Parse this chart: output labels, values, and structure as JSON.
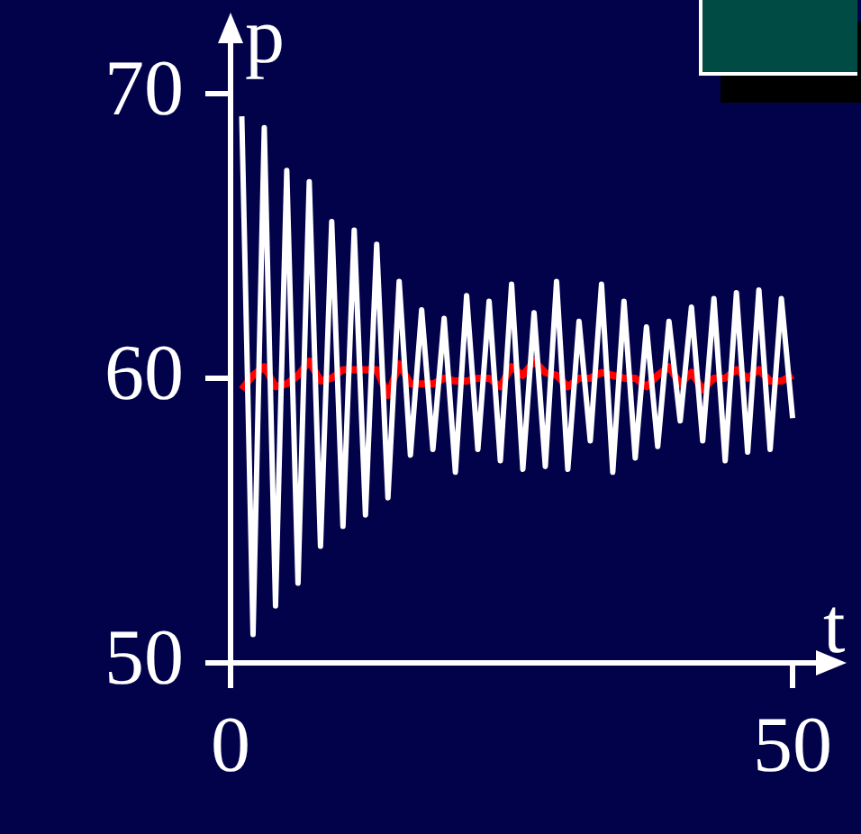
{
  "chart_data": {
    "type": "line",
    "xlabel": "t",
    "ylabel": "p",
    "xlim": [
      0,
      54
    ],
    "ylim": [
      50,
      72.5
    ],
    "xticks": [
      0,
      50
    ],
    "yticks": [
      50,
      60,
      70
    ],
    "grid": false,
    "legend": false,
    "marker": "none",
    "line_style": "solid",
    "series": [
      {
        "color": "#ffffff",
        "x": [
          1,
          2,
          3,
          4,
          5,
          6,
          7,
          8,
          9,
          10,
          11,
          12,
          13,
          14,
          15,
          16,
          17,
          18,
          19,
          20,
          21,
          22,
          23,
          24,
          25,
          26,
          27,
          28,
          29,
          30,
          31,
          32,
          33,
          34,
          35,
          36,
          37,
          38,
          39,
          40,
          41,
          42,
          43,
          44,
          45,
          46,
          47,
          48,
          49,
          50
        ],
        "values": [
          69.2,
          51.0,
          68.8,
          52.0,
          67.3,
          52.8,
          66.9,
          54.1,
          65.5,
          54.8,
          65.2,
          55.2,
          64.7,
          55.8,
          63.4,
          57.3,
          62.4,
          57.5,
          62.1,
          56.7,
          62.9,
          57.5,
          62.7,
          57.1,
          63.3,
          56.8,
          62.3,
          56.9,
          63.4,
          56.8,
          62.0,
          57.8,
          63.3,
          56.7,
          62.7,
          57.2,
          61.8,
          57.6,
          62.0,
          58.5,
          62.5,
          57.8,
          62.8,
          57.1,
          63.0,
          57.4,
          63.1,
          57.5,
          62.8,
          58.6
        ]
      },
      {
        "color": "#ff0000",
        "x": [
          1,
          2,
          3,
          4,
          5,
          6,
          7,
          8,
          9,
          10,
          11,
          12,
          13,
          14,
          15,
          16,
          17,
          18,
          19,
          20,
          21,
          22,
          23,
          24,
          25,
          26,
          27,
          28,
          29,
          30,
          31,
          32,
          33,
          34,
          35,
          36,
          37,
          38,
          39,
          40,
          41,
          42,
          43,
          44,
          45,
          46,
          47,
          48,
          49,
          50
        ],
        "values": [
          59.6,
          60.1,
          60.4,
          59.7,
          59.8,
          60.1,
          60.6,
          59.9,
          60.0,
          60.3,
          60.3,
          60.3,
          60.3,
          59.4,
          60.5,
          59.8,
          59.8,
          59.8,
          60.0,
          59.9,
          59.9,
          60.0,
          60.0,
          59.7,
          60.4,
          60.1,
          60.6,
          60.2,
          60.1,
          59.7,
          60.0,
          60.0,
          60.2,
          60.1,
          60.0,
          60.0,
          59.7,
          60.1,
          60.4,
          59.8,
          60.2,
          59.6,
          60.0,
          60.0,
          60.3,
          60.0,
          60.3,
          59.9,
          59.9,
          60.1
        ]
      }
    ]
  }
}
